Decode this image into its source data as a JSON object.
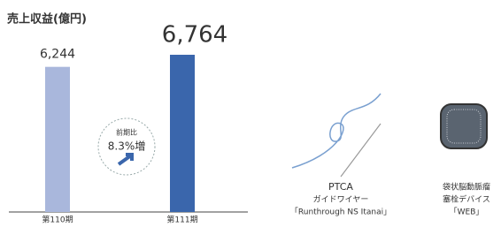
{
  "chart_data": {
    "type": "bar",
    "title": "売上収益(億円)",
    "categories": [
      "第110期",
      "第111期"
    ],
    "values": [
      6244,
      6764
    ],
    "value_labels": [
      "6,244",
      "6,764"
    ],
    "colors": [
      "#a9b7dc",
      "#3a66ac"
    ]
  },
  "badge": {
    "label": "前期比",
    "value": "8.3%増"
  },
  "products": [
    {
      "lines": [
        "PTCA",
        "ガイドワイヤー",
        "「Runthrough NS Itanai」"
      ]
    },
    {
      "lines": [
        "袋状脳動脈瘤",
        "塞栓デバイス",
        "「WEB」"
      ]
    }
  ]
}
